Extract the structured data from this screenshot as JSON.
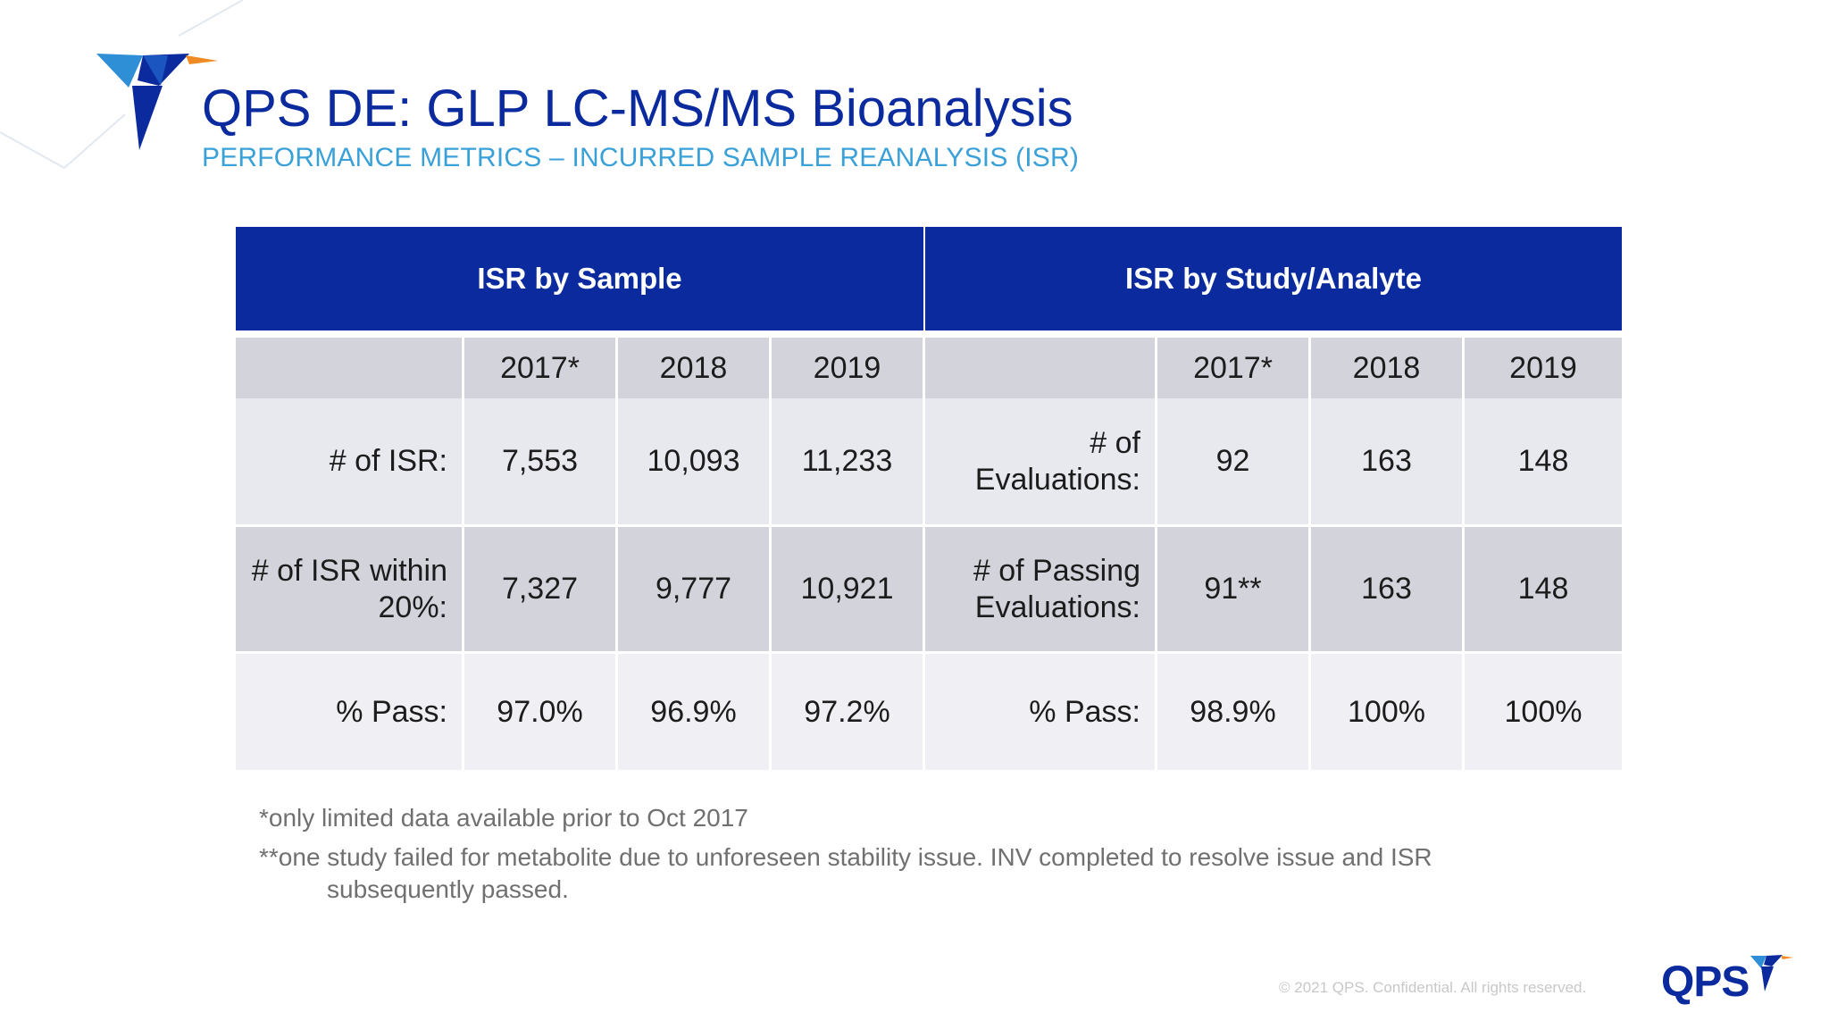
{
  "header": {
    "title": "QPS DE: GLP LC-MS/MS Bioanalysis",
    "subtitle": "PERFORMANCE METRICS – INCURRED SAMPLE REANALYSIS (ISR)"
  },
  "colors": {
    "brand_blue": "#0a2a9e",
    "accent_cyan": "#3aa0d8",
    "row_gray": "#d3d3dc"
  },
  "table": {
    "left_header": "ISR by Sample",
    "right_header": "ISR by Study/Analyte",
    "years": [
      "2017*",
      "2018",
      "2019"
    ],
    "left_rows": [
      {
        "label": "# of ISR:",
        "values": [
          "7,553",
          "10,093",
          "11,233"
        ]
      },
      {
        "label": "# of ISR within 20%:",
        "values": [
          "7,327",
          "9,777",
          "10,921"
        ]
      },
      {
        "label": "% Pass:",
        "values": [
          "97.0%",
          "96.9%",
          "97.2%"
        ]
      }
    ],
    "right_rows": [
      {
        "label": "# of Evaluations:",
        "values": [
          "92",
          "163",
          "148"
        ]
      },
      {
        "label": "# of Passing Evaluations:",
        "values": [
          "91**",
          "163",
          "148"
        ]
      },
      {
        "label": "% Pass:",
        "values": [
          "98.9%",
          "100%",
          "100%"
        ]
      }
    ]
  },
  "footnotes": {
    "note1": "*only limited data available prior to Oct 2017",
    "note2_line1": "**one study failed for metabolite due to unforeseen stability issue. INV completed to resolve issue and ISR",
    "note2_line2": "subsequently passed."
  },
  "footer": {
    "copyright": "© 2021 QPS. Confidential. All rights reserved.",
    "brand": "QPS",
    "logo_icon": "hummingbird-icon"
  }
}
